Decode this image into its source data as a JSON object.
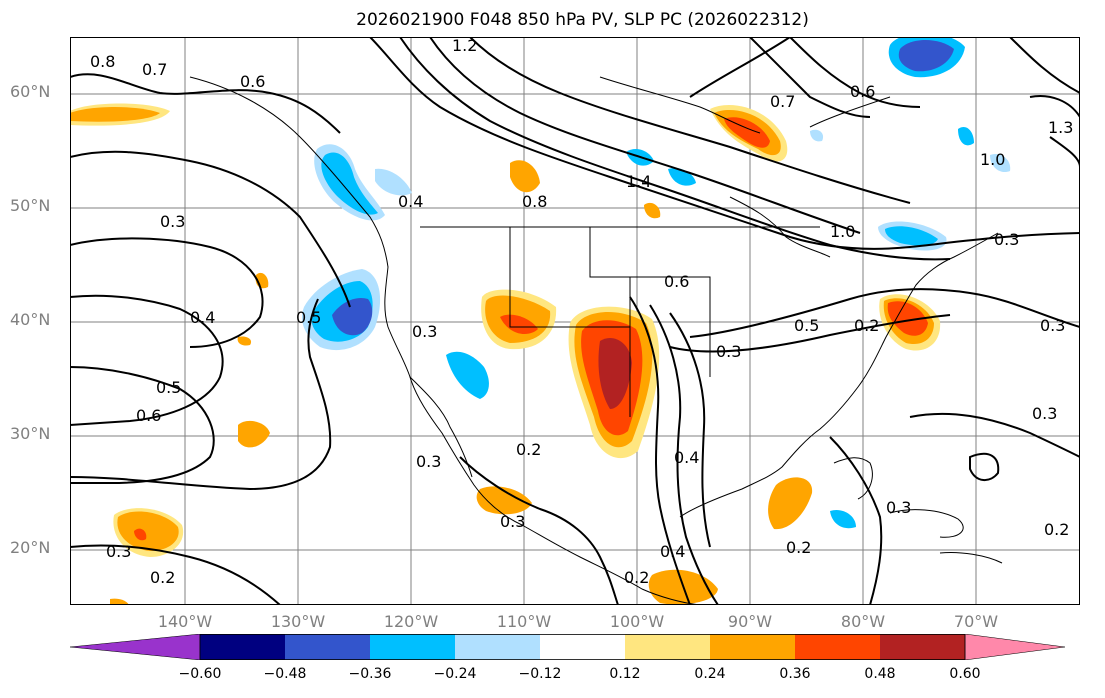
{
  "title": "2026021900 F048 850 hPa PV, SLP PC (2026022312)",
  "lat_labels": [
    "60°N",
    "50°N",
    "40°N",
    "30°N",
    "20°N"
  ],
  "lon_labels": [
    "140°W",
    "130°W",
    "120°W",
    "110°W",
    "100°W",
    "90°W",
    "80°W",
    "70°W"
  ],
  "colorbar": {
    "ticks": [
      "−0.60",
      "−0.48",
      "−0.36",
      "−0.24",
      "−0.12",
      "0.12",
      "0.24",
      "0.36",
      "0.48",
      "0.60"
    ],
    "colors": [
      "#9933cc",
      "#000080",
      "#3355cc",
      "#00bfff",
      "#b0e0ff",
      "#ffffff",
      "#ffe680",
      "#ffa500",
      "#ff4500",
      "#b22222",
      "#ff88aa"
    ]
  },
  "contour_labels": [
    "0.8",
    "0.7",
    "1.2",
    "0.6",
    "0.7",
    "0.6",
    "1.0",
    "0.3",
    "0.4",
    "0.8",
    "0.4",
    "1.4",
    "1.0",
    "0.5",
    "0.3",
    "0.6",
    "0.5",
    "0.2",
    "0.3",
    "0.3",
    "0.5",
    "0.6",
    "0.2",
    "0.3",
    "0.4",
    "0.3",
    "0.3",
    "0.3",
    "0.4",
    "0.2",
    "0.2",
    "0.2",
    "0.3",
    "0.2",
    "0.3",
    "1.3"
  ],
  "colors": {
    "contour": "#000000",
    "coast": "#000000",
    "grid": "#808080",
    "axis_label": "#808080"
  }
}
